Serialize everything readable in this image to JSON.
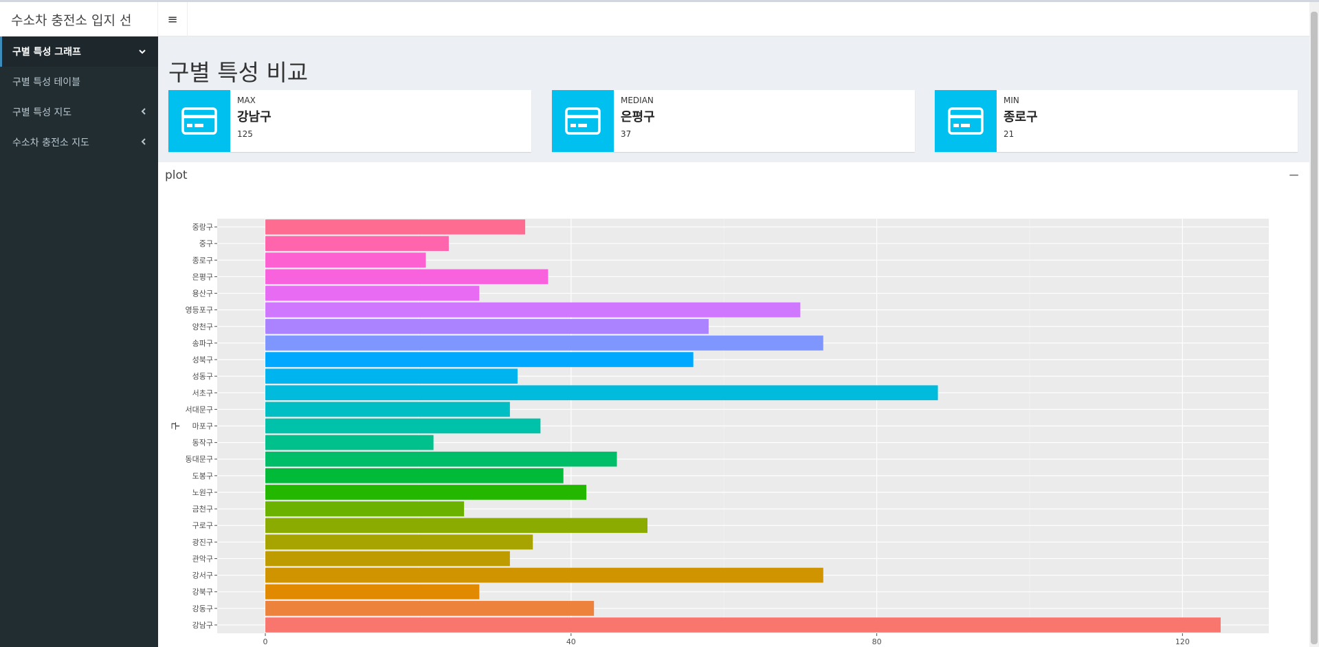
{
  "app": {
    "title": "수소차 충전소 입지 선"
  },
  "header": {
    "menu_icon": "hamburger-icon",
    "menu_glyph": "≡"
  },
  "sidebar": {
    "items": [
      {
        "label": "구별 특성 그래프",
        "active": true,
        "chevron": "chevron-down-icon",
        "glyph": "⌄"
      },
      {
        "label": "구별 특성 테이블",
        "active": false,
        "chevron": "",
        "glyph": ""
      },
      {
        "label": "구별 특성 지도",
        "active": false,
        "chevron": "chevron-left-icon",
        "glyph": "‹"
      },
      {
        "label": "수소차 충전소 지도",
        "active": false,
        "chevron": "chevron-left-icon",
        "glyph": "‹"
      }
    ]
  },
  "main": {
    "title": "구별 특성 비교",
    "infoboxes": [
      {
        "label": "MAX",
        "value": "강남구",
        "sub": "125",
        "icon": "credit-card-icon",
        "color": "#00c0ef"
      },
      {
        "label": "MEDIAN",
        "value": "은평구",
        "sub": "37",
        "icon": "credit-card-icon",
        "color": "#00c0ef"
      },
      {
        "label": "MIN",
        "value": "종로구",
        "sub": "21",
        "icon": "credit-card-icon",
        "color": "#00c0ef"
      }
    ],
    "plot_box": {
      "title": "plot",
      "collapse_glyph": "−"
    }
  },
  "chart_data": {
    "type": "bar",
    "orientation": "horizontal",
    "ylabel": "구",
    "xlabel": "",
    "xlim": [
      -6.3,
      131.3
    ],
    "xticks": [
      0,
      40,
      80,
      120
    ],
    "grid": true,
    "background": "#ebebeb",
    "categories": [
      "강남구",
      "강동구",
      "강북구",
      "강서구",
      "관악구",
      "광진구",
      "구로구",
      "금천구",
      "노원구",
      "도봉구",
      "동대문구",
      "동작구",
      "마포구",
      "서대문구",
      "서초구",
      "성동구",
      "성북구",
      "송파구",
      "양천구",
      "영등포구",
      "용산구",
      "은평구",
      "종로구",
      "중구",
      "중랑구"
    ],
    "values": [
      125,
      43,
      28,
      73,
      32,
      35,
      50,
      26,
      42,
      39,
      46,
      22,
      36,
      32,
      88,
      33,
      56,
      73,
      58,
      70,
      28,
      37,
      21,
      24,
      34
    ],
    "colors": [
      "#F8766D",
      "#EC823C",
      "#E18A00",
      "#D09400",
      "#BE9C00",
      "#A7A300",
      "#8CAB00",
      "#6BB100",
      "#24B700",
      "#00BA38",
      "#00BE67",
      "#00C08B",
      "#00C1A9",
      "#00BFC4",
      "#00BBDC",
      "#00B4EF",
      "#00A9FF",
      "#7F96FF",
      "#AB82FF",
      "#D077FF",
      "#E76BF3",
      "#F962DD",
      "#FD61D1",
      "#FF65AC",
      "#FF6C91"
    ]
  }
}
